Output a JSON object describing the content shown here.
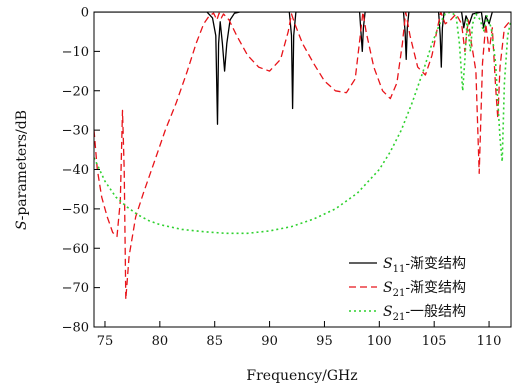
{
  "chart_data": {
    "type": "line",
    "xlabel": "Frequency/GHz",
    "ylabel_italic": "S",
    "ylabel_rest": "-parameters/dB",
    "xlim": [
      74,
      112
    ],
    "ylim": [
      -80,
      0
    ],
    "xticks": [
      75,
      80,
      85,
      90,
      95,
      100,
      105,
      110
    ],
    "yticks": [
      0,
      -10,
      -20,
      -30,
      -40,
      -50,
      -60,
      -70,
      -80
    ],
    "grid": false,
    "legend_placement": "bottom-right",
    "series": [
      {
        "legend_sym": "S",
        "legend_sub": "11",
        "legend_suffix": "-渐变结构",
        "color": "#000000",
        "dash": "none",
        "points": [
          [
            74,
            0
          ],
          [
            84.3,
            0
          ],
          [
            84.8,
            -1.5
          ],
          [
            85.1,
            -6
          ],
          [
            85.25,
            -28.5
          ],
          [
            85.35,
            -8
          ],
          [
            85.5,
            -2.5
          ],
          [
            85.7,
            -8
          ],
          [
            85.9,
            -15
          ],
          [
            86.1,
            -8
          ],
          [
            86.4,
            -2
          ],
          [
            86.8,
            -0.3
          ],
          [
            87.3,
            0
          ],
          [
            91.8,
            0
          ],
          [
            92.0,
            -6
          ],
          [
            92.1,
            -24.5
          ],
          [
            92.2,
            -6
          ],
          [
            92.4,
            0
          ],
          [
            98.2,
            0
          ],
          [
            98.35,
            -6
          ],
          [
            98.45,
            -10
          ],
          [
            98.55,
            -4
          ],
          [
            98.7,
            0
          ],
          [
            102.2,
            0
          ],
          [
            102.35,
            -5
          ],
          [
            102.45,
            -12
          ],
          [
            102.55,
            -4
          ],
          [
            102.7,
            0
          ],
          [
            105.4,
            0
          ],
          [
            105.55,
            -6
          ],
          [
            105.65,
            -14
          ],
          [
            105.75,
            -4
          ],
          [
            105.9,
            0
          ],
          [
            107.5,
            0
          ],
          [
            107.7,
            -4
          ],
          [
            107.9,
            -1
          ],
          [
            108.2,
            -3
          ],
          [
            108.5,
            -0.5
          ],
          [
            109.3,
            0
          ],
          [
            109.5,
            -4
          ],
          [
            109.7,
            -1
          ],
          [
            110.0,
            -3
          ],
          [
            110.3,
            0
          ],
          [
            112,
            0
          ]
        ]
      },
      {
        "legend_sym": "S",
        "legend_sub": "21",
        "legend_suffix": "-渐变结构",
        "color": "#e8141a",
        "dash": "7,4",
        "points": [
          [
            74,
            -30
          ],
          [
            74.3,
            -40
          ],
          [
            74.7,
            -47
          ],
          [
            75.2,
            -52
          ],
          [
            75.7,
            -56
          ],
          [
            76.1,
            -57
          ],
          [
            76.4,
            -48
          ],
          [
            76.6,
            -25
          ],
          [
            76.75,
            -40
          ],
          [
            76.9,
            -73
          ],
          [
            77.2,
            -62
          ],
          [
            77.8,
            -52
          ],
          [
            78.5,
            -46
          ],
          [
            79.5,
            -38
          ],
          [
            80.5,
            -30
          ],
          [
            81.5,
            -23
          ],
          [
            82.5,
            -15
          ],
          [
            83.3,
            -8
          ],
          [
            84.0,
            -3
          ],
          [
            84.5,
            -1
          ],
          [
            84.9,
            -0.3
          ],
          [
            85.2,
            -2
          ],
          [
            85.4,
            -0.3
          ],
          [
            85.6,
            -1.5
          ],
          [
            85.8,
            -0.5
          ],
          [
            86.3,
            -2
          ],
          [
            87,
            -6
          ],
          [
            88,
            -11
          ],
          [
            89,
            -14
          ],
          [
            90,
            -15
          ],
          [
            91,
            -12
          ],
          [
            91.7,
            -5
          ],
          [
            92.0,
            -0.5
          ],
          [
            92.3,
            -3
          ],
          [
            93,
            -8
          ],
          [
            94,
            -13
          ],
          [
            95,
            -17.5
          ],
          [
            96,
            -20
          ],
          [
            97,
            -20.5
          ],
          [
            97.8,
            -17
          ],
          [
            98.3,
            -5
          ],
          [
            98.5,
            0
          ],
          [
            98.8,
            -5
          ],
          [
            99.5,
            -14
          ],
          [
            100.3,
            -20
          ],
          [
            101,
            -22
          ],
          [
            101.6,
            -18
          ],
          [
            102.1,
            -8
          ],
          [
            102.4,
            0
          ],
          [
            102.8,
            -6
          ],
          [
            103.5,
            -14
          ],
          [
            104.2,
            -16
          ],
          [
            104.8,
            -11
          ],
          [
            105.3,
            -4
          ],
          [
            105.6,
            0
          ],
          [
            106,
            -3
          ],
          [
            106.5,
            -2
          ],
          [
            107,
            -0.5
          ],
          [
            107.5,
            -3
          ],
          [
            107.8,
            -10
          ],
          [
            108.1,
            -2
          ],
          [
            108.4,
            -8
          ],
          [
            108.8,
            -15
          ],
          [
            109.1,
            -41
          ],
          [
            109.4,
            -13
          ],
          [
            109.7,
            -3
          ],
          [
            110.0,
            -10
          ],
          [
            110.3,
            -4
          ],
          [
            110.6,
            -19
          ],
          [
            110.8,
            -27
          ],
          [
            111.0,
            -14
          ],
          [
            111.4,
            -4
          ],
          [
            112,
            -2
          ]
        ]
      },
      {
        "legend_sym": "S",
        "legend_sub": "21",
        "legend_suffix": "-一般结构",
        "color": "#2fd12f",
        "dash": "2,3",
        "points": [
          [
            74,
            -37
          ],
          [
            75,
            -43
          ],
          [
            76,
            -47
          ],
          [
            77,
            -49.5
          ],
          [
            78,
            -51.5
          ],
          [
            79,
            -53
          ],
          [
            80,
            -54
          ],
          [
            82,
            -55.2
          ],
          [
            84,
            -55.8
          ],
          [
            86,
            -56.2
          ],
          [
            88,
            -56.2
          ],
          [
            90,
            -55.6
          ],
          [
            92,
            -54.5
          ],
          [
            94,
            -52.6
          ],
          [
            96,
            -50
          ],
          [
            98,
            -46
          ],
          [
            100,
            -40
          ],
          [
            101,
            -35.5
          ],
          [
            102,
            -30
          ],
          [
            103,
            -23
          ],
          [
            104,
            -15
          ],
          [
            104.8,
            -8
          ],
          [
            105.5,
            -3
          ],
          [
            106,
            -0.5
          ],
          [
            106.5,
            0
          ],
          [
            107,
            -1
          ],
          [
            107.3,
            -8
          ],
          [
            107.6,
            -20
          ],
          [
            107.8,
            -12
          ],
          [
            108,
            -2
          ],
          [
            108.3,
            -10
          ],
          [
            108.5,
            -3
          ],
          [
            108.8,
            -0.5
          ],
          [
            109.2,
            -2
          ],
          [
            109.5,
            -5
          ],
          [
            109.8,
            -1
          ],
          [
            110.2,
            -4
          ],
          [
            110.6,
            -13
          ],
          [
            111.0,
            -32
          ],
          [
            111.2,
            -38
          ],
          [
            111.4,
            -18
          ],
          [
            111.7,
            -6
          ],
          [
            112,
            -2
          ]
        ]
      }
    ]
  }
}
